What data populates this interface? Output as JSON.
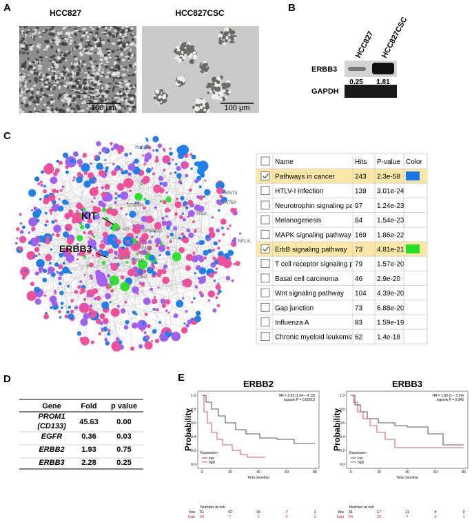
{
  "panel_labels": [
    "A",
    "B",
    "C",
    "D",
    "E"
  ],
  "panel_a": {
    "images": [
      {
        "label": "HCC827",
        "scale_bar": "100 μm"
      },
      {
        "label": "HCC827CSC",
        "scale_bar": "100 μm"
      }
    ]
  },
  "panel_b": {
    "lanes": [
      "HCC827",
      "HCC827CSC"
    ],
    "rows": [
      "ERBB3",
      "GAPDH"
    ],
    "values": [
      0.25,
      1.81
    ]
  },
  "panel_c": {
    "network_labels": {
      "big": [
        "KIT",
        "ERBB3"
      ],
      "small": [
        "PLCG2",
        "TP53",
        "WNT4",
        "WNT5A",
        "RPL3L",
        "STAT5A",
        "KIT",
        "HSP90AA1",
        "SRC",
        "PAK1",
        "SYK",
        "ERBB3",
        "CBLB",
        "UBC"
      ]
    },
    "table": {
      "headers": [
        "Name",
        "Hits",
        "P-value",
        "Color"
      ],
      "rows": [
        {
          "name": "Pathways in cancer",
          "hits": 243,
          "p_value": "2.3e-58",
          "checked": true,
          "color": "#1877e6"
        },
        {
          "name": "HTLV-I infection",
          "hits": 139,
          "p_value": "3.01e-24",
          "checked": false
        },
        {
          "name": "Neurotrophin signaling pat",
          "hits": 97,
          "p_value": "1.24e-23",
          "checked": false
        },
        {
          "name": "Melanogenesis",
          "hits": 84,
          "p_value": "1.54e-23",
          "checked": false
        },
        {
          "name": "MAPK signaling pathway",
          "hits": 169,
          "p_value": "1.86e-22",
          "checked": false
        },
        {
          "name": "ErbB signaling pathway",
          "hits": 73,
          "p_value": "4.81e-21",
          "checked": true,
          "color": "#22e022"
        },
        {
          "name": "T cell receptor signaling pa",
          "hits": 79,
          "p_value": "1.57e-20",
          "checked": false
        },
        {
          "name": "Basal cell carcinoma",
          "hits": 46,
          "p_value": "2.9e-20",
          "checked": false
        },
        {
          "name": "Wnt signaling pathway",
          "hits": 104,
          "p_value": "4.39e-20",
          "checked": false
        },
        {
          "name": "Gap junction",
          "hits": 73,
          "p_value": "6.88e-20",
          "checked": false
        },
        {
          "name": "Influenza A",
          "hits": 83,
          "p_value": "1.59e-19",
          "checked": false
        },
        {
          "name": "Chronic myeloid leukemia",
          "hits": 62,
          "p_value": "1.4e-18",
          "checked": false
        }
      ]
    }
  },
  "panel_d": {
    "headers": [
      "Gene",
      "Fold",
      "p value"
    ],
    "rows": [
      {
        "gene": "PROM1",
        "gene_note": "(CD133)",
        "fold": "45.63",
        "p": "0.00"
      },
      {
        "gene": "EGFR",
        "fold": "0.36",
        "p": "0.03"
      },
      {
        "gene": "ERBB2",
        "fold": "1.93",
        "p": "0.75"
      },
      {
        "gene": "ERBB3",
        "fold": "2.28",
        "p": "0.25"
      }
    ]
  },
  "panel_e": {
    "y_label": "Probability",
    "x_label": "Time (months)",
    "yticks": [
      {
        "value": 0,
        "label": "0.0"
      },
      {
        "value": 0.2,
        "label": "0.2"
      },
      {
        "value": 0.4,
        "label": "0.4"
      },
      {
        "value": 0.6,
        "label": "0.6"
      },
      {
        "value": 0.8,
        "label": "0.8"
      },
      {
        "value": 1,
        "label": "1.0"
      }
    ],
    "xticks": [
      0,
      20,
      40,
      60,
      80
    ],
    "legend_title": "Expression",
    "legend": [
      "low",
      "high"
    ],
    "risk_title": "Number at risk",
    "risk_rows": [
      "low",
      "high"
    ],
    "plots": [
      {
        "title": "ERBB2",
        "hr": "HR = 2.53 (1.54 − 4.13)",
        "logrank": "logrank P = 0.00013",
        "risk_low": [
          51,
          42,
          16,
          7,
          1
        ],
        "risk_high": [
          34,
          7,
          2,
          0,
          0
        ]
      },
      {
        "title": "ERBB3",
        "hr": "HR = 1.83 (1 − 3.34)",
        "logrank": "logrank P = 0.045",
        "risk_low": [
          31,
          17,
          11,
          4,
          0
        ],
        "risk_high": [
          54,
          29,
          7,
          3,
          1
        ]
      }
    ]
  }
}
